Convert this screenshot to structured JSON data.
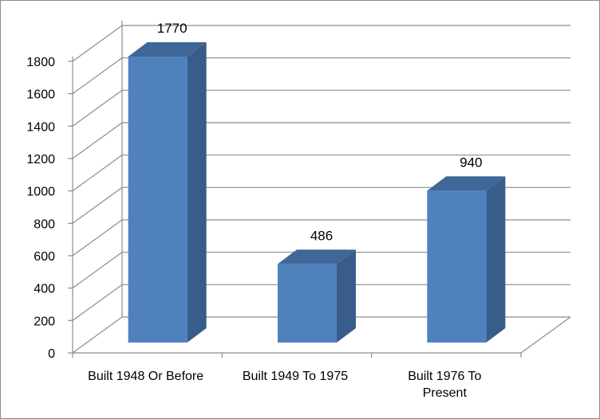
{
  "chart_data": {
    "type": "bar",
    "style": "3d-column",
    "categories": [
      [
        "Built 1948 Or Before"
      ],
      [
        "Built 1949 To 1975"
      ],
      [
        "Built 1976 To",
        "Present"
      ]
    ],
    "values": [
      1770,
      486,
      940
    ],
    "data_labels": [
      "1770",
      "486",
      "940"
    ],
    "yticks": [
      "0",
      "200",
      "400",
      "600",
      "800",
      "1000",
      "1200",
      "1400",
      "1600",
      "1800"
    ],
    "ylim": [
      0,
      1800
    ],
    "grid": true,
    "legend": "none",
    "colors": {
      "bar_front": "#4F81BD",
      "bar_side": "#385D8A",
      "bar_top": "#3F6797",
      "grid": "#8C8C8C",
      "border": "#8C8C8C"
    }
  }
}
